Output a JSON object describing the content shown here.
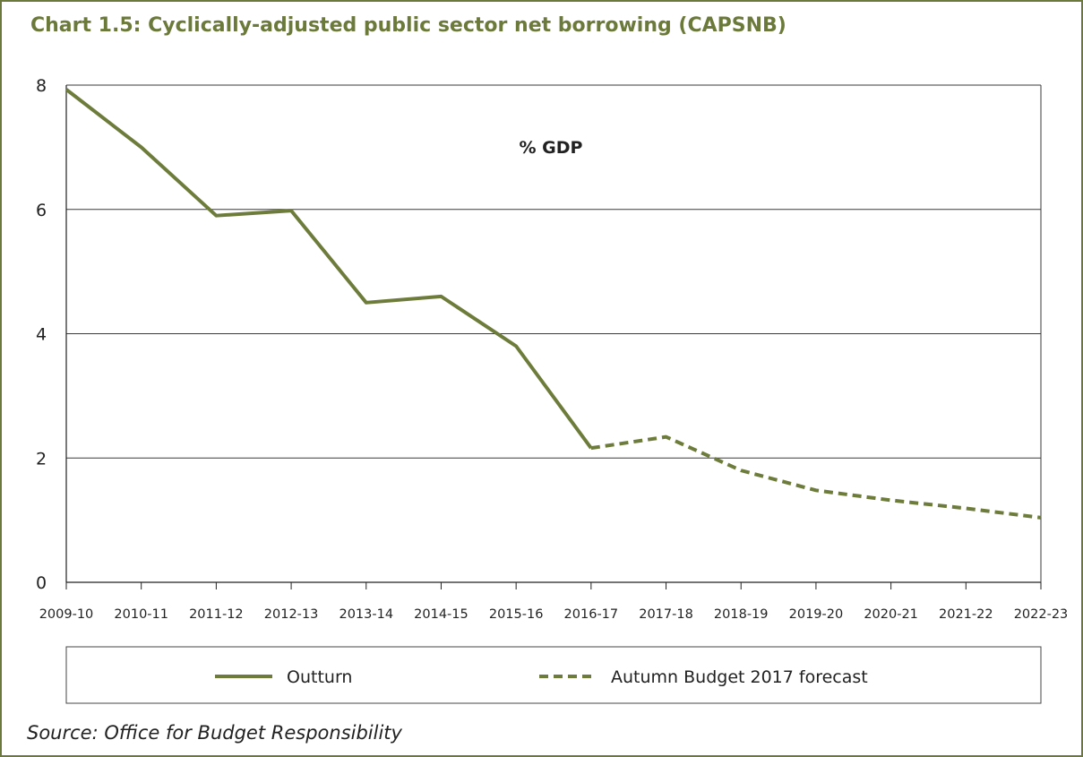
{
  "title": "Chart 1.5: Cyclically-adjusted public sector net borrowing (CAPSNB)",
  "source": "Source: Office for Budget Responsibility",
  "colors": {
    "accent": "#6b7a3a",
    "line": "#6d7c3b",
    "grid": "#3a3a3a"
  },
  "chart_data": {
    "type": "line",
    "title": "Chart 1.5: Cyclically-adjusted public sector net borrowing (CAPSNB)",
    "annotation": "% GDP",
    "categories": [
      "2009-10",
      "2010-11",
      "2011-12",
      "2012-13",
      "2013-14",
      "2014-15",
      "2015-16",
      "2016-17",
      "2017-18",
      "2018-19",
      "2019-20",
      "2020-21",
      "2021-22",
      "2022-23"
    ],
    "ylim": [
      0,
      8
    ],
    "yticks": [
      0,
      2,
      4,
      6,
      8
    ],
    "grid": true,
    "legend_position": "bottom",
    "series": [
      {
        "name": "Outturn",
        "style": "solid",
        "values": [
          7.93,
          7.0,
          5.9,
          5.98,
          4.5,
          4.6,
          3.8,
          2.16,
          null,
          null,
          null,
          null,
          null,
          null
        ]
      },
      {
        "name": "Autumn Budget 2017 forecast",
        "style": "dashed",
        "values": [
          null,
          null,
          null,
          null,
          null,
          null,
          null,
          2.16,
          2.34,
          1.8,
          1.48,
          1.32,
          1.19,
          1.04
        ]
      }
    ]
  }
}
